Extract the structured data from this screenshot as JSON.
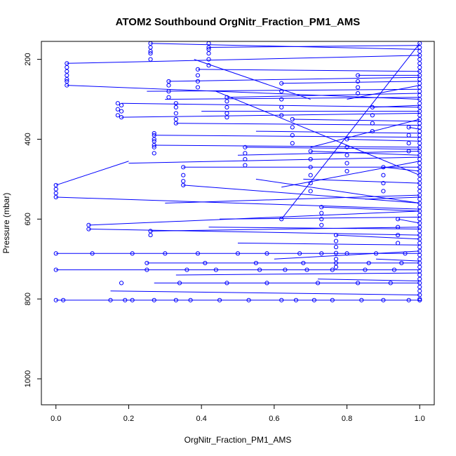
{
  "chart_data": {
    "type": "scatter",
    "title": "ATOM2 Southbound OrgNitr_Fraction_PM1_AMS",
    "xlabel": "OrgNitr_Fraction_PM1_AMS",
    "ylabel": "Pressure (mbar)",
    "xlim": [
      -0.04,
      1.04
    ],
    "ylim": [
      1065,
      155
    ],
    "y_reversed": true,
    "x_ticks": [
      0.0,
      0.2,
      0.4,
      0.6,
      0.8,
      1.0
    ],
    "x_tick_labels": [
      "0.0",
      "0.2",
      "0.4",
      "0.6",
      "0.8",
      "1.0"
    ],
    "y_ticks": [
      200,
      400,
      600,
      800,
      1000
    ],
    "y_tick_labels": [
      "200",
      "400",
      "600",
      "800",
      "1000"
    ],
    "grid": false,
    "legend": "none",
    "series_color": "#0000ff",
    "series": [
      {
        "x": [
          0.03,
          0.03,
          0.03,
          0.03,
          0.03,
          0.03,
          0.03,
          0.17,
          0.17,
          0.17,
          0.18,
          0.18,
          0.18,
          0.26,
          0.26,
          0.26,
          0.26,
          0.26,
          0.31,
          0.31,
          0.31,
          0.31,
          0.33,
          0.33,
          0.33,
          0.33,
          0.33,
          0.39,
          0.39,
          0.39,
          0.39,
          0.42,
          0.42,
          0.42,
          0.42,
          0.42,
          0.42,
          0.27,
          0.27,
          0.27,
          0.27,
          0.27,
          0.27,
          0.27,
          0.35,
          0.35,
          0.35,
          0.35,
          0.52,
          0.52,
          0.52,
          0.52,
          0.0,
          0.0,
          0.0,
          0.0,
          0.09,
          0.09,
          0.26,
          0.26,
          0.47,
          0.47,
          0.47,
          0.47,
          0.47,
          0.62,
          0.62,
          0.62,
          0.62,
          0.62,
          0.62,
          0.65,
          0.65,
          0.65,
          0.65,
          0.7,
          0.7,
          0.7,
          0.7,
          0.7,
          0.7,
          0.73,
          0.73,
          0.73,
          0.73,
          0.77,
          0.77,
          0.77,
          0.77,
          0.77,
          0.77,
          0.8,
          0.8,
          0.8,
          0.8,
          0.8,
          0.83,
          0.83,
          0.83,
          0.83,
          0.87,
          0.87,
          0.87,
          0.87,
          0.9,
          0.9,
          0.9,
          0.9,
          0.94,
          0.94,
          0.94,
          0.94,
          0.97,
          0.97,
          0.97,
          0.97,
          0.0,
          0.02,
          0.15,
          0.19,
          0.21,
          0.27,
          0.33,
          0.37,
          0.45,
          0.53,
          0.62,
          0.66,
          0.71,
          0.76,
          0.84,
          0.9,
          0.97,
          0.0,
          0.1,
          0.21,
          0.3,
          0.39,
          0.5,
          0.58,
          0.67,
          0.73,
          0.8,
          0.88,
          0.96,
          0.0,
          0.25,
          0.36,
          0.44,
          0.56,
          0.63,
          0.69,
          0.76,
          0.85,
          0.93,
          0.18,
          0.34,
          0.47,
          0.58,
          0.72,
          0.83,
          0.92,
          0.25,
          0.41,
          0.55,
          0.68,
          0.77,
          0.86,
          0.95
        ],
        "y": [
          210,
          230,
          250,
          265,
          220,
          240,
          255,
          310,
          325,
          340,
          315,
          330,
          345,
          160,
          180,
          200,
          185,
          170,
          255,
          265,
          280,
          295,
          320,
          335,
          350,
          360,
          310,
          225,
          240,
          255,
          270,
          170,
          185,
          200,
          215,
          160,
          175,
          390,
          405,
          420,
          435,
          415,
          400,
          385,
          470,
          490,
          505,
          515,
          420,
          435,
          450,
          465,
          515,
          525,
          535,
          545,
          615,
          625,
          630,
          640,
          295,
          305,
          320,
          335,
          345,
          260,
          280,
          300,
          320,
          340,
          600,
          350,
          370,
          390,
          410,
          430,
          450,
          470,
          490,
          510,
          530,
          570,
          585,
          600,
          615,
          640,
          655,
          670,
          685,
          700,
          720,
          400,
          420,
          440,
          460,
          480,
          240,
          255,
          270,
          285,
          320,
          340,
          360,
          380,
          470,
          490,
          510,
          530,
          600,
          620,
          640,
          660,
          370,
          390,
          410,
          430,
          803,
          803,
          803,
          803,
          803,
          803,
          803,
          803,
          803,
          803,
          803,
          803,
          803,
          803,
          803,
          803,
          803,
          686,
          686,
          686,
          686,
          686,
          686,
          686,
          686,
          686,
          686,
          686,
          686,
          727,
          727,
          727,
          727,
          727,
          727,
          727,
          727,
          727,
          727,
          760,
          760,
          760,
          760,
          760,
          760,
          760,
          710,
          710,
          710,
          710,
          710,
          710,
          710
        ]
      },
      {
        "x": [
          1.0,
          1.0,
          1.0,
          1.0,
          1.0,
          1.0,
          1.0,
          1.0,
          1.0,
          1.0,
          1.0,
          1.0,
          1.0,
          1.0,
          1.0,
          1.0,
          1.0,
          1.0,
          1.0,
          1.0,
          1.0,
          1.0,
          1.0,
          1.0,
          1.0,
          1.0,
          1.0,
          1.0,
          1.0,
          1.0,
          1.0,
          1.0,
          1.0,
          1.0,
          1.0,
          1.0,
          1.0,
          1.0,
          1.0,
          1.0,
          1.0,
          1.0,
          1.0,
          1.0,
          1.0,
          1.0,
          1.0,
          1.0,
          1.0,
          1.0,
          1.0,
          1.0,
          1.0,
          1.0,
          1.0,
          1.0,
          1.0,
          1.0,
          1.0,
          1.0,
          1.0,
          1.0,
          1.0,
          1.0,
          1.0,
          1.0,
          1.0
        ],
        "y": [
          160,
          170,
          180,
          190,
          200,
          210,
          220,
          230,
          240,
          250,
          260,
          270,
          280,
          290,
          300,
          310,
          320,
          330,
          340,
          350,
          360,
          370,
          380,
          390,
          400,
          410,
          420,
          430,
          440,
          450,
          460,
          470,
          480,
          490,
          500,
          510,
          520,
          530,
          540,
          550,
          560,
          570,
          580,
          590,
          600,
          610,
          620,
          630,
          640,
          650,
          660,
          670,
          680,
          690,
          700,
          710,
          720,
          730,
          740,
          750,
          760,
          770,
          780,
          790,
          800,
          803,
          803
        ]
      }
    ],
    "segments": [
      [
        0.03,
        210,
        1.0,
        190
      ],
      [
        0.03,
        265,
        1.0,
        300
      ],
      [
        0.18,
        310,
        1.0,
        320
      ],
      [
        0.18,
        345,
        1.0,
        335
      ],
      [
        0.26,
        160,
        1.0,
        175
      ],
      [
        0.31,
        255,
        1.0,
        245
      ],
      [
        0.33,
        360,
        1.0,
        365
      ],
      [
        0.39,
        225,
        1.0,
        230
      ],
      [
        0.42,
        170,
        1.0,
        165
      ],
      [
        0.27,
        390,
        1.0,
        395
      ],
      [
        0.27,
        415,
        1.0,
        420
      ],
      [
        0.35,
        470,
        1.0,
        470
      ],
      [
        0.35,
        515,
        1.0,
        560
      ],
      [
        0.52,
        420,
        1.0,
        425
      ],
      [
        0.0,
        515,
        0.2,
        455
      ],
      [
        0.0,
        545,
        1.0,
        575
      ],
      [
        0.09,
        615,
        1.0,
        580
      ],
      [
        0.09,
        625,
        1.0,
        640
      ],
      [
        0.26,
        630,
        1.0,
        620
      ],
      [
        0.47,
        295,
        1.0,
        285
      ],
      [
        0.62,
        260,
        1.0,
        255
      ],
      [
        0.62,
        600,
        1.0,
        160
      ],
      [
        0.65,
        350,
        1.0,
        355
      ],
      [
        0.7,
        430,
        1.0,
        440
      ],
      [
        0.73,
        570,
        1.0,
        580
      ],
      [
        0.77,
        640,
        1.0,
        650
      ],
      [
        0.8,
        400,
        1.0,
        405
      ],
      [
        0.83,
        240,
        1.0,
        240
      ],
      [
        0.87,
        320,
        1.0,
        315
      ],
      [
        0.9,
        470,
        1.0,
        480
      ],
      [
        0.94,
        600,
        1.0,
        610
      ],
      [
        0.97,
        370,
        1.0,
        375
      ],
      [
        0.0,
        803,
        1.0,
        803
      ],
      [
        0.0,
        686,
        1.0,
        686
      ],
      [
        0.0,
        727,
        1.0,
        727
      ],
      [
        0.27,
        760,
        1.0,
        760
      ],
      [
        0.25,
        710,
        1.0,
        710
      ],
      [
        0.44,
        280,
        1.0,
        490
      ],
      [
        0.55,
        500,
        1.0,
        560
      ],
      [
        0.38,
        200,
        0.7,
        300
      ],
      [
        0.3,
        560,
        1.0,
        540
      ],
      [
        0.2,
        460,
        1.0,
        445
      ],
      [
        0.6,
        700,
        1.0,
        680
      ],
      [
        0.5,
        660,
        1.0,
        665
      ],
      [
        0.15,
        780,
        1.0,
        790
      ],
      [
        0.33,
        740,
        1.0,
        735
      ],
      [
        0.45,
        600,
        1.0,
        595
      ],
      [
        0.72,
        750,
        1.0,
        755
      ],
      [
        0.25,
        280,
        1.0,
        275
      ],
      [
        0.4,
        330,
        1.0,
        330
      ],
      [
        0.55,
        380,
        1.0,
        385
      ],
      [
        0.3,
        300,
        1.0,
        295
      ],
      [
        0.68,
        500,
        1.0,
        510
      ],
      [
        0.85,
        550,
        1.0,
        545
      ],
      [
        0.5,
        440,
        1.0,
        430
      ],
      [
        0.42,
        620,
        1.0,
        625
      ],
      [
        0.62,
        520,
        1.0,
        455
      ],
      [
        0.8,
        300,
        1.0,
        265
      ],
      [
        0.7,
        420,
        1.0,
        350
      ],
      [
        0.88,
        700,
        1.0,
        705
      ]
    ]
  }
}
